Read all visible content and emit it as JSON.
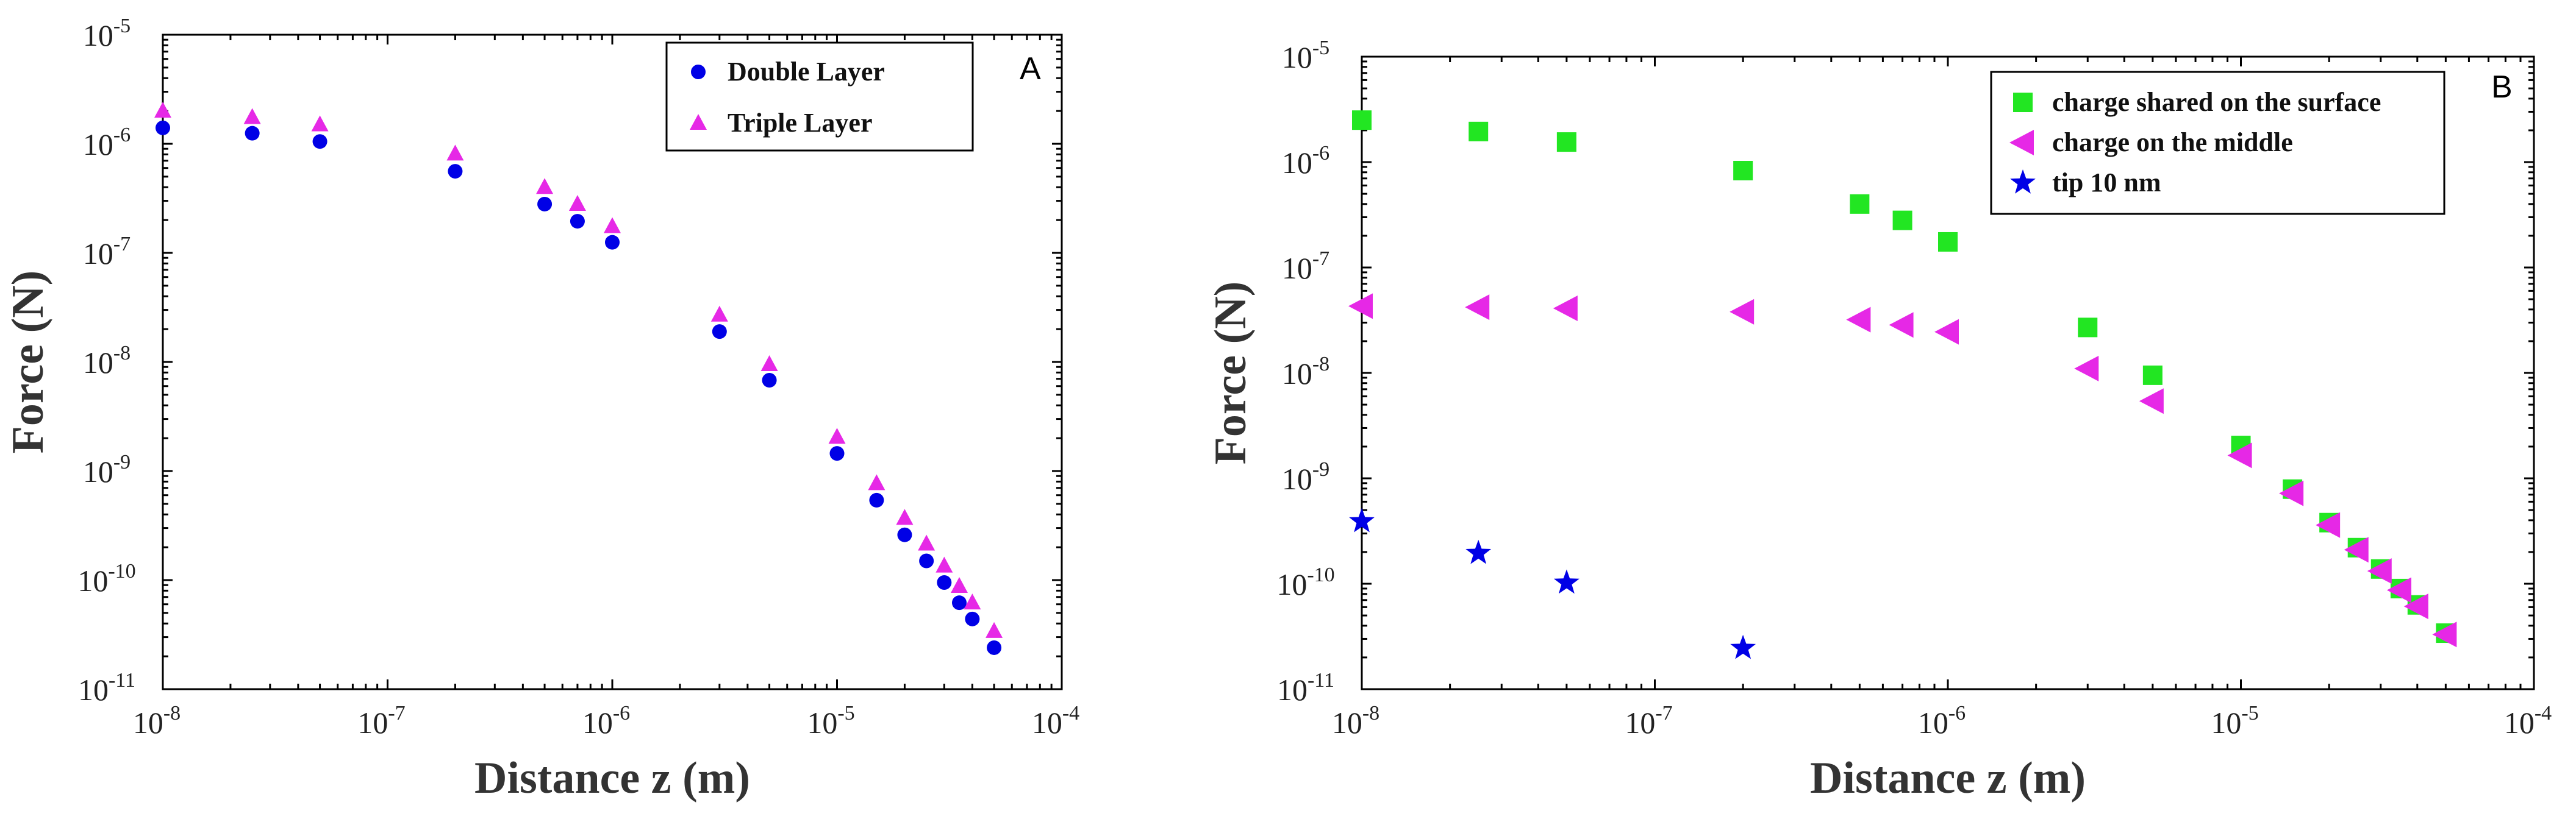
{
  "chart_data": [
    {
      "type": "scatter",
      "panel_label": "A",
      "xscale": "log",
      "yscale": "log",
      "xlim": [
        1e-08,
        0.0001
      ],
      "ylim": [
        1e-11,
        1e-05
      ],
      "xlabel": "Distance z (m)",
      "ylabel": "Force (N)",
      "x_ticks": [
        {
          "mant": "10",
          "exp": "-8",
          "value": 1e-08
        },
        {
          "mant": "10",
          "exp": "-7",
          "value": 1e-07
        },
        {
          "mant": "10",
          "exp": "-6",
          "value": 1e-06
        },
        {
          "mant": "10",
          "exp": "-5",
          "value": 1e-05
        },
        {
          "mant": "10",
          "exp": "-4",
          "value": 0.0001
        }
      ],
      "y_ticks": [
        {
          "mant": "10",
          "exp": "-11",
          "value": 1e-11
        },
        {
          "mant": "10",
          "exp": "-10",
          "value": 1e-10
        },
        {
          "mant": "10",
          "exp": "-9",
          "value": 1e-09
        },
        {
          "mant": "10",
          "exp": "-8",
          "value": 1e-08
        },
        {
          "mant": "10",
          "exp": "-7",
          "value": 1e-07
        },
        {
          "mant": "10",
          "exp": "-6",
          "value": 1e-06
        },
        {
          "mant": "10",
          "exp": "-5",
          "value": 1e-05
        }
      ],
      "legend_position": "top-right",
      "series": [
        {
          "name": "Double Layer",
          "marker": "circle",
          "color": "#0000e6",
          "points": [
            [
              1e-08,
              1.4e-06
            ],
            [
              2.5e-08,
              1.25e-06
            ],
            [
              5e-08,
              1.05e-06
            ],
            [
              2e-07,
              5.6e-07
            ],
            [
              5e-07,
              2.8e-07
            ],
            [
              7e-07,
              1.95e-07
            ],
            [
              1e-06,
              1.25e-07
            ],
            [
              3e-06,
              1.9e-08
            ],
            [
              5e-06,
              6.8e-09
            ],
            [
              1e-05,
              1.45e-09
            ],
            [
              1.5e-05,
              5.4e-10
            ],
            [
              2e-05,
              2.6e-10
            ],
            [
              2.5e-05,
              1.5e-10
            ],
            [
              3e-05,
              9.5e-11
            ],
            [
              3.5e-05,
              6.2e-11
            ],
            [
              4e-05,
              4.4e-11
            ],
            [
              5e-05,
              2.4e-11
            ]
          ]
        },
        {
          "name": "Triple Layer",
          "marker": "triangle-up",
          "color": "#e628e6",
          "points": [
            [
              1e-08,
              2e-06
            ],
            [
              2.5e-08,
              1.75e-06
            ],
            [
              5e-08,
              1.5e-06
            ],
            [
              2e-07,
              8.1e-07
            ],
            [
              5e-07,
              4e-07
            ],
            [
              7e-07,
              2.8e-07
            ],
            [
              1e-06,
              1.75e-07
            ],
            [
              3e-06,
              2.7e-08
            ],
            [
              5e-06,
              9.5e-09
            ],
            [
              1e-05,
              2.05e-09
            ],
            [
              1.5e-05,
              7.7e-10
            ],
            [
              2e-05,
              3.7e-10
            ],
            [
              2.5e-05,
              2.15e-10
            ],
            [
              3e-05,
              1.35e-10
            ],
            [
              3.5e-05,
              8.8e-11
            ],
            [
              4e-05,
              6.2e-11
            ],
            [
              5e-05,
              3.4e-11
            ]
          ]
        }
      ]
    },
    {
      "type": "scatter",
      "panel_label": "B",
      "xscale": "log",
      "yscale": "log",
      "xlim": [
        1e-08,
        0.0001
      ],
      "ylim": [
        1e-11,
        1e-05
      ],
      "xlabel": "Distance z (m)",
      "ylabel": "Force (N)",
      "x_ticks": [
        {
          "mant": "10",
          "exp": "-8",
          "value": 1e-08
        },
        {
          "mant": "10",
          "exp": "-7",
          "value": 1e-07
        },
        {
          "mant": "10",
          "exp": "-6",
          "value": 1e-06
        },
        {
          "mant": "10",
          "exp": "-5",
          "value": 1e-05
        },
        {
          "mant": "10",
          "exp": "-4",
          "value": 0.0001
        }
      ],
      "y_ticks": [
        {
          "mant": "10",
          "exp": "-11",
          "value": 1e-11
        },
        {
          "mant": "10",
          "exp": "-10",
          "value": 1e-10
        },
        {
          "mant": "10",
          "exp": "-9",
          "value": 1e-09
        },
        {
          "mant": "10",
          "exp": "-8",
          "value": 1e-08
        },
        {
          "mant": "10",
          "exp": "-7",
          "value": 1e-07
        },
        {
          "mant": "10",
          "exp": "-6",
          "value": 1e-06
        },
        {
          "mant": "10",
          "exp": "-5",
          "value": 1e-05
        }
      ],
      "legend_position": "top-right",
      "series": [
        {
          "name": "charge shared on the surface",
          "marker": "square",
          "color": "#22e622",
          "points": [
            [
              1e-08,
              2.5e-06
            ],
            [
              2.5e-08,
              1.95e-06
            ],
            [
              5e-08,
              1.55e-06
            ],
            [
              2e-07,
              8.3e-07
            ],
            [
              5e-07,
              4e-07
            ],
            [
              7e-07,
              2.8e-07
            ],
            [
              1e-06,
              1.75e-07
            ],
            [
              3e-06,
              2.7e-08
            ],
            [
              5e-06,
              9.5e-09
            ],
            [
              1e-05,
              2.05e-09
            ],
            [
              1.5e-05,
              7.9e-10
            ],
            [
              2e-05,
              3.8e-10
            ],
            [
              2.5e-05,
              2.2e-10
            ],
            [
              3e-05,
              1.38e-10
            ],
            [
              3.5e-05,
              9e-11
            ],
            [
              4e-05,
              6.3e-11
            ],
            [
              5e-05,
              3.4e-11
            ]
          ]
        },
        {
          "name": "charge on the middle",
          "marker": "triangle-left",
          "color": "#e628e6",
          "points": [
            [
              1e-08,
              4.3e-08
            ],
            [
              2.5e-08,
              4.2e-08
            ],
            [
              5e-08,
              4.1e-08
            ],
            [
              2e-07,
              3.8e-08
            ],
            [
              5e-07,
              3.2e-08
            ],
            [
              7e-07,
              2.85e-08
            ],
            [
              1e-06,
              2.45e-08
            ],
            [
              3e-06,
              1.1e-08
            ],
            [
              5e-06,
              5.4e-09
            ],
            [
              1e-05,
              1.65e-09
            ],
            [
              1.5e-05,
              7.2e-10
            ],
            [
              2e-05,
              3.6e-10
            ],
            [
              2.5e-05,
              2.1e-10
            ],
            [
              3e-05,
              1.32e-10
            ],
            [
              3.5e-05,
              8.7e-11
            ],
            [
              4e-05,
              6.1e-11
            ],
            [
              5e-05,
              3.3e-11
            ]
          ]
        },
        {
          "name": "tip 10 nm",
          "marker": "star",
          "color": "#0000e6",
          "points": [
            [
              1e-08,
              3.9e-10
            ],
            [
              2.5e-08,
              1.95e-10
            ],
            [
              5e-08,
              1.02e-10
            ],
            [
              2e-07,
              2.45e-11
            ]
          ]
        }
      ]
    }
  ]
}
